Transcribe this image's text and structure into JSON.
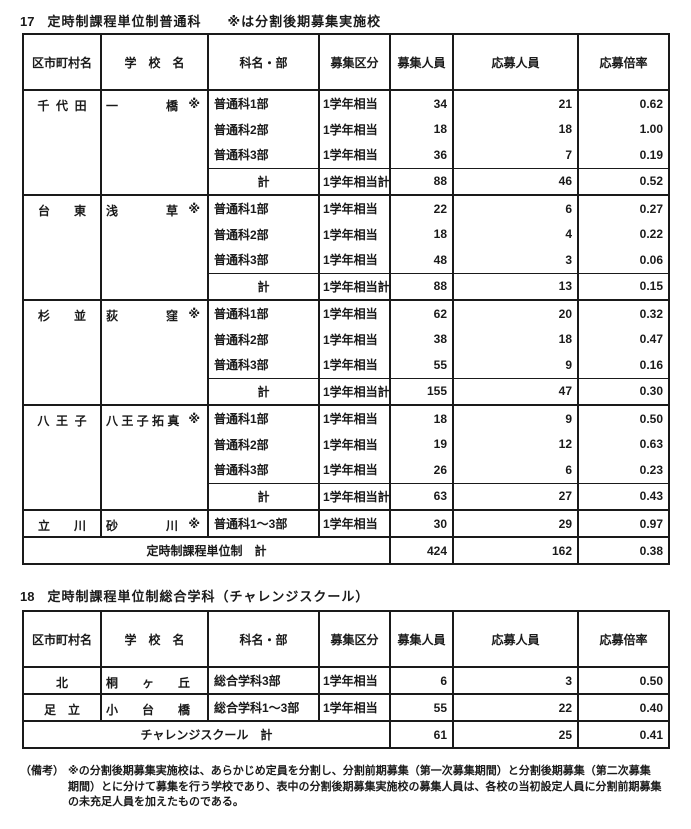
{
  "doc": {
    "ink": "#1a1a1a",
    "bg": "#ffffff"
  },
  "sections": [
    {
      "no": "17",
      "title": "定時制課程単位制普通科",
      "note": "※は分割後期募集実施校",
      "columns": [
        "区市町村名",
        "学　校　名",
        "科名・部",
        "募集区分",
        "募集人員",
        "応募人員",
        "応募倍率"
      ],
      "groups": [
        {
          "municipality": "千  代  田",
          "school": "一　　　　橋",
          "mark": "※",
          "rows": [
            {
              "dept": "普通科1部",
              "division": "1学年相当",
              "recruit": "34",
              "applicants": "21",
              "ratio": "0.62"
            },
            {
              "dept": "普通科2部",
              "division": "1学年相当",
              "recruit": "18",
              "applicants": "18",
              "ratio": "1.00"
            },
            {
              "dept": "普通科3部",
              "division": "1学年相当",
              "recruit": "36",
              "applicants": "7",
              "ratio": "0.19"
            }
          ],
          "subtotal": {
            "dept": "計",
            "division": "1学年相当計",
            "recruit": "88",
            "applicants": "46",
            "ratio": "0.52"
          }
        },
        {
          "municipality": "台　　東",
          "school": "浅　　　　草",
          "mark": "※",
          "rows": [
            {
              "dept": "普通科1部",
              "division": "1学年相当",
              "recruit": "22",
              "applicants": "6",
              "ratio": "0.27"
            },
            {
              "dept": "普通科2部",
              "division": "1学年相当",
              "recruit": "18",
              "applicants": "4",
              "ratio": "0.22"
            },
            {
              "dept": "普通科3部",
              "division": "1学年相当",
              "recruit": "48",
              "applicants": "3",
              "ratio": "0.06"
            }
          ],
          "subtotal": {
            "dept": "計",
            "division": "1学年相当計",
            "recruit": "88",
            "applicants": "13",
            "ratio": "0.15"
          }
        },
        {
          "municipality": "杉　　並",
          "school": "荻　　　　窪",
          "mark": "※",
          "rows": [
            {
              "dept": "普通科1部",
              "division": "1学年相当",
              "recruit": "62",
              "applicants": "20",
              "ratio": "0.32"
            },
            {
              "dept": "普通科2部",
              "division": "1学年相当",
              "recruit": "38",
              "applicants": "18",
              "ratio": "0.47"
            },
            {
              "dept": "普通科3部",
              "division": "1学年相当",
              "recruit": "55",
              "applicants": "9",
              "ratio": "0.16"
            }
          ],
          "subtotal": {
            "dept": "計",
            "division": "1学年相当計",
            "recruit": "155",
            "applicants": "47",
            "ratio": "0.30"
          }
        },
        {
          "municipality": "八  王  子",
          "school": "八 王 子 拓 真",
          "mark": "※",
          "rows": [
            {
              "dept": "普通科1部",
              "division": "1学年相当",
              "recruit": "18",
              "applicants": "9",
              "ratio": "0.50"
            },
            {
              "dept": "普通科2部",
              "division": "1学年相当",
              "recruit": "19",
              "applicants": "12",
              "ratio": "0.63"
            },
            {
              "dept": "普通科3部",
              "division": "1学年相当",
              "recruit": "26",
              "applicants": "6",
              "ratio": "0.23"
            }
          ],
          "subtotal": {
            "dept": "計",
            "division": "1学年相当計",
            "recruit": "63",
            "applicants": "27",
            "ratio": "0.43"
          }
        },
        {
          "municipality": "立　　川",
          "school": "砂　　　　川",
          "mark": "※",
          "rows": [
            {
              "dept": "普通科1～3部",
              "division": "1学年相当",
              "recruit": "30",
              "applicants": "29",
              "ratio": "0.97"
            }
          ],
          "subtotal": null
        }
      ],
      "total": {
        "label": "定時制課程単位制　計",
        "recruit": "424",
        "applicants": "162",
        "ratio": "0.38"
      }
    },
    {
      "no": "18",
      "title": "定時制課程単位制総合学科（チャレンジスクール）",
      "note": "",
      "columns": [
        "区市町村名",
        "学　校　名",
        "科名・部",
        "募集区分",
        "募集人員",
        "応募人員",
        "応募倍率"
      ],
      "groups": [
        {
          "municipality": "北",
          "school": "桐　　ヶ　　丘",
          "mark": "",
          "rows": [
            {
              "dept": "総合学科3部",
              "division": "1学年相当",
              "recruit": "6",
              "applicants": "3",
              "ratio": "0.50"
            }
          ],
          "subtotal": null
        },
        {
          "municipality": "足　立",
          "school": "小　　台　　橋",
          "mark": "",
          "rows": [
            {
              "dept": "総合学科1～3部",
              "division": "1学年相当",
              "recruit": "55",
              "applicants": "22",
              "ratio": "0.40"
            }
          ],
          "subtotal": null
        }
      ],
      "total": {
        "label": "チャレンジスクール　計",
        "recruit": "61",
        "applicants": "25",
        "ratio": "0.41"
      }
    }
  ],
  "remarks": {
    "label": "（備考）",
    "lines": [
      "※の分割後期募集実施校は、あらかじめ定員を分割し、分割前期募集（第一次募集期間）と分割後期募集（第二次募集",
      "期間）とに分けて募集を行う学校であり、表中の分割後期募集実施校の募集人員は、各校の当初設定人員に分割前期募集",
      "の未充足人員を加えたものである。"
    ]
  }
}
